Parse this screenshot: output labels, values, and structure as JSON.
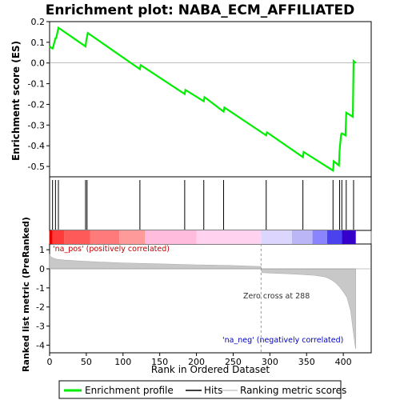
{
  "chart_data": [
    {
      "type": "line",
      "title": "Enrichment plot: NABA_ECM_AFFILIATED",
      "ylabel": "Enrichment score (ES)",
      "ylim": [
        -0.55,
        0.2
      ],
      "yticks": [
        0.2,
        0.1,
        0.0,
        -0.1,
        -0.2,
        -0.3,
        -0.4,
        -0.5
      ],
      "xlim": [
        0,
        438
      ],
      "series": [
        {
          "name": "Enrichment profile",
          "color": "#00ee00",
          "x": [
            0,
            4,
            5,
            8,
            9,
            12,
            49,
            50,
            52,
            123,
            124,
            184,
            185,
            210,
            211,
            237,
            238,
            295,
            296,
            345,
            346,
            386,
            387,
            394,
            395,
            397,
            398,
            403,
            404,
            413,
            414,
            417
          ],
          "y": [
            0.08,
            0.07,
            0.08,
            0.12,
            0.12,
            0.17,
            0.08,
            0.11,
            0.145,
            -0.03,
            -0.01,
            -0.15,
            -0.13,
            -0.185,
            -0.165,
            -0.235,
            -0.215,
            -0.35,
            -0.335,
            -0.455,
            -0.43,
            -0.52,
            -0.475,
            -0.495,
            -0.42,
            -0.345,
            -0.34,
            -0.35,
            -0.24,
            -0.26,
            0.01,
            0.0
          ]
        }
      ],
      "hits": [
        4,
        8,
        12,
        49,
        51,
        123,
        184,
        210,
        237,
        295,
        345,
        386,
        395,
        398,
        404,
        414
      ]
    },
    {
      "type": "area",
      "ylabel": "Ranked list metric (PreRanked)",
      "xlabel": "Rank in Ordered Dataset",
      "xlim": [
        0,
        438
      ],
      "ylim": [
        -4.4,
        1.3
      ],
      "yticks": [
        1,
        0,
        -1,
        -2,
        -3,
        -4
      ],
      "xticks": [
        0,
        50,
        100,
        150,
        200,
        250,
        300,
        350,
        400
      ],
      "x": [
        0,
        2,
        5,
        10,
        20,
        40,
        60,
        80,
        100,
        150,
        200,
        250,
        288,
        289,
        300,
        330,
        360,
        375,
        380,
        385,
        390,
        395,
        400,
        405,
        410,
        412,
        414,
        416,
        417
      ],
      "values": [
        0.75,
        0.62,
        0.56,
        0.5,
        0.46,
        0.41,
        0.37,
        0.34,
        0.31,
        0.26,
        0.21,
        0.17,
        0.12,
        -0.2,
        -0.22,
        -0.27,
        -0.34,
        -0.42,
        -0.5,
        -0.6,
        -0.75,
        -0.95,
        -1.2,
        -1.5,
        -2.2,
        -2.8,
        -3.4,
        -4.0,
        -4.2
      ],
      "annotations": {
        "pos_label": "'na_pos' (positively correlated)",
        "neg_label": "'na_neg' (negatively correlated)",
        "zero_cross": "Zero cross at 288",
        "zero_cross_rank": 288
      }
    }
  ],
  "heatmap_colors": [
    "#e60000",
    "#ff3b3b",
    "#ff5a5a",
    "#ff7a7a",
    "#ff9a9a",
    "#ffbcdc",
    "#ffd2f0",
    "#dcd6ff",
    "#bbb6f5",
    "#8a84ff",
    "#4a42ee",
    "#3500cc"
  ],
  "legend": [
    {
      "label": "Enrichment profile",
      "color": "#00ee00"
    },
    {
      "label": "Hits",
      "color": "#000000"
    },
    {
      "label": "Ranking metric scores",
      "color": "#c8c8c8"
    }
  ],
  "colors": {
    "profile": "#00ee00",
    "metric_fill": "#c8c8c8",
    "pos_text": "#c00000",
    "neg_text": "#0000c0"
  }
}
